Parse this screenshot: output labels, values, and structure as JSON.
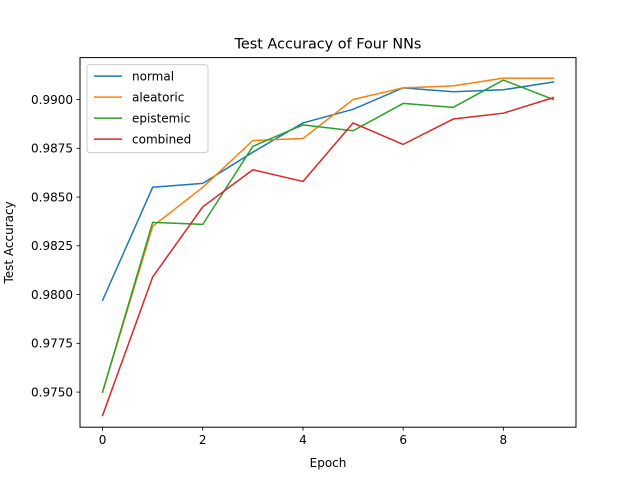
{
  "chart_data": {
    "type": "line",
    "title": "Test Accuracy of Four NNs",
    "xlabel": "Epoch",
    "ylabel": "Test Accuracy",
    "xlim": [
      -0.45,
      9.45
    ],
    "ylim": [
      0.9732,
      0.99215
    ],
    "xticks": [
      0,
      2,
      4,
      6,
      8
    ],
    "xtick_labels": [
      "0",
      "2",
      "4",
      "6",
      "8"
    ],
    "yticks": [
      0.975,
      0.9775,
      0.98,
      0.9825,
      0.985,
      0.9875,
      0.99
    ],
    "ytick_labels": [
      "0.9750",
      "0.9775",
      "0.9800",
      "0.9825",
      "0.9850",
      "0.9875",
      "0.9900"
    ],
    "grid": false,
    "legend_position": "top-left",
    "x": [
      0,
      1,
      2,
      3,
      4,
      5,
      6,
      7,
      8,
      9
    ],
    "series": [
      {
        "name": "normal",
        "color": "#1f77b4",
        "values": [
          0.9797,
          0.9855,
          0.9857,
          0.9873,
          0.9888,
          0.9895,
          0.9906,
          0.9904,
          0.9905,
          0.9909
        ]
      },
      {
        "name": "aleatoric",
        "color": "#ff7f0e",
        "values": [
          0.975,
          0.9835,
          0.9855,
          0.9879,
          0.988,
          0.99,
          0.9906,
          0.9907,
          0.9911,
          0.9911
        ]
      },
      {
        "name": "epistemic",
        "color": "#2ca02c",
        "values": [
          0.975,
          0.9837,
          0.9836,
          0.9876,
          0.9887,
          0.9884,
          0.9898,
          0.9896,
          0.991,
          0.99
        ]
      },
      {
        "name": "combined",
        "color": "#d62728",
        "values": [
          0.9738,
          0.9809,
          0.9845,
          0.9864,
          0.9858,
          0.9888,
          0.9877,
          0.989,
          0.9893,
          0.9901
        ]
      }
    ]
  }
}
